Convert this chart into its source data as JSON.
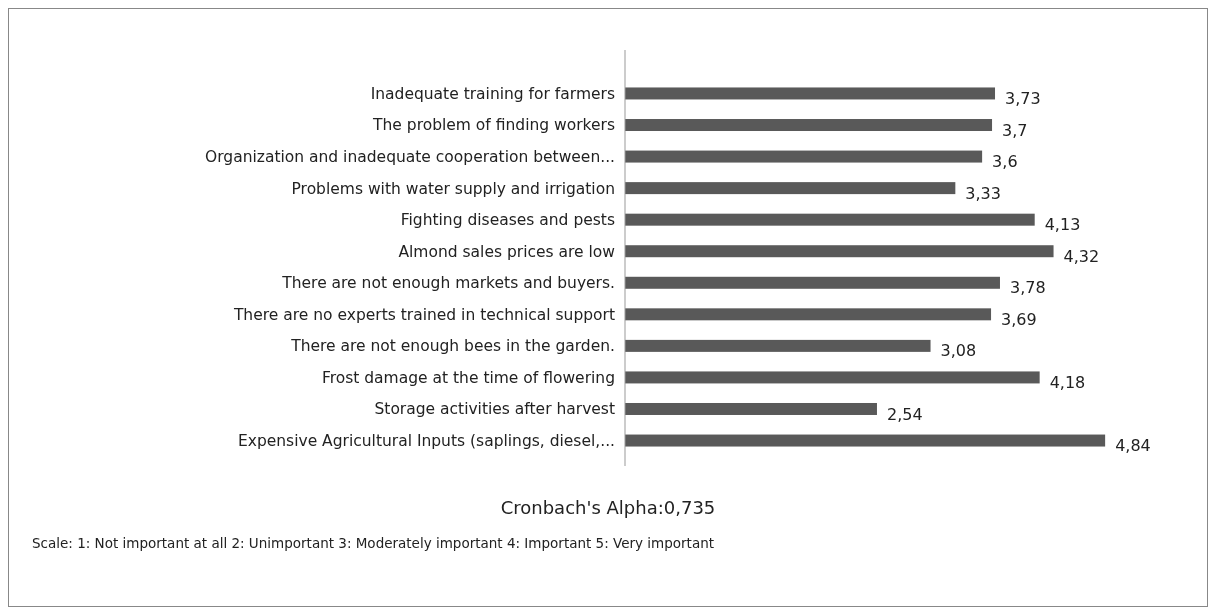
{
  "chart_data": {
    "type": "bar",
    "orientation": "horizontal",
    "categories": [
      "Inadequate training for farmers",
      "The problem of finding workers",
      "Organization and inadequate cooperation between...",
      "Problems with water supply and irrigation",
      "Fighting diseases and pests",
      "Almond sales prices are low",
      "There are not enough markets and buyers.",
      "There are no experts trained in technical support",
      "There are not enough bees in the garden.",
      "Frost damage at the time of flowering",
      "Storage activities after harvest",
      "Expensive Agricultural Inputs (saplings, diesel,..."
    ],
    "values": [
      3.73,
      3.7,
      3.6,
      3.33,
      4.13,
      4.32,
      3.78,
      3.69,
      3.08,
      4.18,
      2.54,
      4.84
    ],
    "value_labels": [
      "3,73",
      "3,7",
      "3,6",
      "3,33",
      "4,13",
      "4,32",
      "3,78",
      "3,69",
      "3,08",
      "4,18",
      "2,54",
      "4,84"
    ],
    "color": "#595959",
    "annotations": [
      "Cronbach's Alpha:0,735",
      "Scale: 1: Not important at all 2: Unimportant 3: Moderately important 4: Important 5: Very important"
    ]
  }
}
